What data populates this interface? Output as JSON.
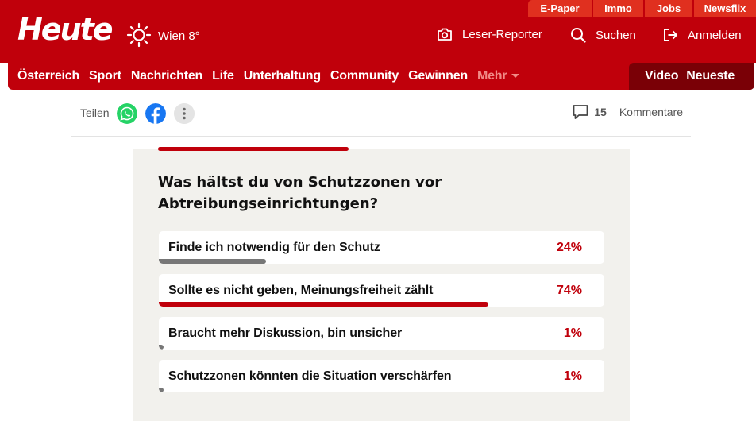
{
  "brand": {
    "name": "Heute",
    "color": "#c0000b"
  },
  "weather": {
    "icon": "sun-icon",
    "text": "Wien 8°"
  },
  "service_links": [
    "E-Paper",
    "Immo",
    "Jobs",
    "Newsflix"
  ],
  "actions": {
    "reporter": {
      "icon": "camera-icon",
      "label": "Leser-Reporter"
    },
    "search": {
      "icon": "search-icon",
      "label": "Suchen"
    },
    "login": {
      "icon": "login-icon",
      "label": "Anmelden"
    }
  },
  "nav": {
    "items": [
      "Österreich",
      "Sport",
      "Nachrichten",
      "Life",
      "Unterhaltung",
      "Community",
      "Gewinnen"
    ],
    "more": "Mehr",
    "right": [
      "Video",
      "Neueste"
    ]
  },
  "share": {
    "label": "Teilen",
    "icons": [
      "whatsapp-icon",
      "facebook-icon",
      "more-icon"
    ],
    "comments_count": "15",
    "comments_label": "Kommentare"
  },
  "poll": {
    "question": "Was hältst du von Schutzzonen vor Abtreibungseinrichtungen?",
    "options": [
      {
        "label": "Finde ich notwendig für den Schutz",
        "percent": "24%",
        "share": 24,
        "highlight": false
      },
      {
        "label": "Sollte es nicht geben, Meinungsfreiheit zählt",
        "percent": "74%",
        "share": 74,
        "highlight": true
      },
      {
        "label": "Braucht mehr Diskussion, bin unsicher",
        "percent": "1%",
        "share": 1,
        "highlight": false
      },
      {
        "label": "Schutzzonen könnten die Situation verschärfen",
        "percent": "1%",
        "share": 1,
        "highlight": false
      }
    ]
  }
}
